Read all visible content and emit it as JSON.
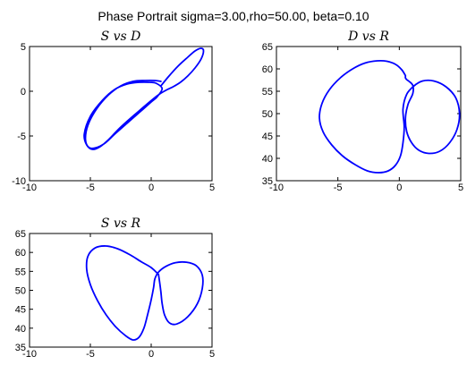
{
  "figure": {
    "suptitle": "Phase Portrait sigma=3.00,rho=50.00, beta=0.10",
    "line_color": "#0000ff"
  },
  "chart_data": [
    {
      "type": "line",
      "title": "S vs D",
      "xlabel": "",
      "ylabel": "",
      "xlim": [
        -10,
        5
      ],
      "ylim": [
        -10,
        5
      ],
      "xticks": [
        -10,
        -5,
        0,
        5
      ],
      "yticks": [
        -10,
        -5,
        0,
        5
      ],
      "xticklabels": [
        "-10",
        "-5",
        "0",
        "5"
      ],
      "yticklabels": [
        "-10",
        "-5",
        "0",
        "5"
      ],
      "grid": false,
      "series": [
        {
          "x": [
            0.8,
            0.3,
            -0.5,
            -1.5,
            -2.5,
            -3.5,
            -4.5,
            -5.2,
            -5.4,
            -5.1,
            -4.5,
            -3.8,
            -3.0,
            -2.0,
            -1.0,
            0.0,
            0.5,
            0.9,
            0.4,
            -0.1,
            -1.0,
            -2.0,
            -3.0,
            -4.0,
            -5.0,
            -5.5,
            -5.3,
            -4.8,
            -4.2,
            -3.5,
            -2.5,
            -1.0,
            0.5,
            1.2,
            1.8,
            2.4,
            3.0,
            3.6,
            4.1,
            4.3,
            4.1,
            3.6,
            3.0,
            2.2,
            1.4,
            0.8
          ],
          "y": [
            1.1,
            1.2,
            1.2,
            1.1,
            0.6,
            -0.4,
            -2.0,
            -3.8,
            -5.4,
            -6.3,
            -6.3,
            -5.8,
            -4.8,
            -3.6,
            -2.4,
            -1.2,
            -0.6,
            0.3,
            0.9,
            1.0,
            1.0,
            0.8,
            0.2,
            -1.0,
            -2.8,
            -4.8,
            -6.0,
            -6.5,
            -6.2,
            -5.4,
            -4.0,
            -2.2,
            -0.5,
            0.1,
            0.5,
            1.0,
            1.7,
            2.6,
            3.6,
            4.5,
            4.8,
            4.5,
            3.8,
            2.8,
            1.6,
            0.6
          ]
        }
      ]
    },
    {
      "type": "line",
      "title": "D vs R",
      "xlabel": "",
      "ylabel": "",
      "xlim": [
        -10,
        5
      ],
      "ylim": [
        35,
        65
      ],
      "xticks": [
        -10,
        -5,
        0,
        5
      ],
      "yticks": [
        35,
        40,
        45,
        50,
        55,
        60,
        65
      ],
      "xticklabels": [
        "-10",
        "-5",
        "0",
        "5"
      ],
      "yticklabels": [
        "35",
        "40",
        "45",
        "50",
        "55",
        "60",
        "65"
      ],
      "grid": false,
      "series": [
        {
          "x": [
            0.5,
            0.2,
            -0.3,
            -1.0,
            -1.8,
            -2.8,
            -3.8,
            -4.8,
            -5.7,
            -6.3,
            -6.5,
            -6.2,
            -5.5,
            -4.6,
            -3.6,
            -2.6,
            -1.7,
            -0.9,
            -0.3,
            0.1,
            0.3,
            0.4,
            0.3,
            0.6,
            1.2,
            1.9,
            2.8,
            3.8,
            4.6,
            4.9,
            4.7,
            4.1,
            3.3,
            2.4,
            1.6,
            1.0,
            0.6,
            0.5,
            0.7,
            1.1,
            1.1,
            0.8,
            0.6,
            0.5,
            0.5,
            0.5
          ],
          "y": [
            58.5,
            59.8,
            61.0,
            61.7,
            61.8,
            61.3,
            60.0,
            58.0,
            55.3,
            52.2,
            49.0,
            45.9,
            43.0,
            40.5,
            38.6,
            37.2,
            36.8,
            37.2,
            38.5,
            40.6,
            43.5,
            47.0,
            51.0,
            54.3,
            56.2,
            57.3,
            57.3,
            56.0,
            53.5,
            50.0,
            46.5,
            43.5,
            41.6,
            41.1,
            41.8,
            43.5,
            46.0,
            49.0,
            52.0,
            54.5,
            56.3,
            57.2,
            57.6,
            58.0,
            58.3,
            58.5
          ]
        }
      ]
    },
    {
      "type": "line",
      "title": "S vs R",
      "xlabel": "",
      "ylabel": "",
      "xlim": [
        -10,
        5
      ],
      "ylim": [
        35,
        65
      ],
      "xticks": [
        -10,
        -5,
        0,
        5
      ],
      "yticks": [
        35,
        40,
        45,
        50,
        55,
        60,
        65
      ],
      "xticklabels": [
        "-10",
        "-5",
        "0",
        "5"
      ],
      "yticklabels": [
        "35",
        "40",
        "45",
        "50",
        "55",
        "60",
        "65"
      ],
      "grid": false,
      "series": [
        {
          "x": [
            0.6,
            0.0,
            -0.8,
            -1.7,
            -2.7,
            -3.7,
            -4.6,
            -5.2,
            -5.3,
            -5.0,
            -4.4,
            -3.7,
            -2.9,
            -2.1,
            -1.5,
            -1.0,
            -0.6,
            -0.3,
            0.0,
            0.2,
            0.3,
            0.6,
            1.2,
            2.0,
            2.9,
            3.7,
            4.2,
            4.2,
            3.8,
            3.0,
            2.1,
            1.5,
            1.1,
            0.9,
            0.8,
            0.7,
            0.6
          ],
          "y": [
            54.2,
            56.0,
            57.5,
            59.3,
            60.9,
            61.7,
            61.2,
            59.0,
            55.5,
            51.5,
            47.2,
            43.5,
            40.3,
            38.0,
            36.9,
            37.6,
            40.0,
            43.5,
            47.5,
            50.8,
            53.0,
            54.8,
            56.3,
            57.3,
            57.4,
            56.5,
            54.0,
            50.5,
            46.5,
            43.0,
            41.1,
            41.4,
            43.5,
            46.5,
            49.5,
            52.0,
            54.2
          ]
        }
      ]
    }
  ]
}
